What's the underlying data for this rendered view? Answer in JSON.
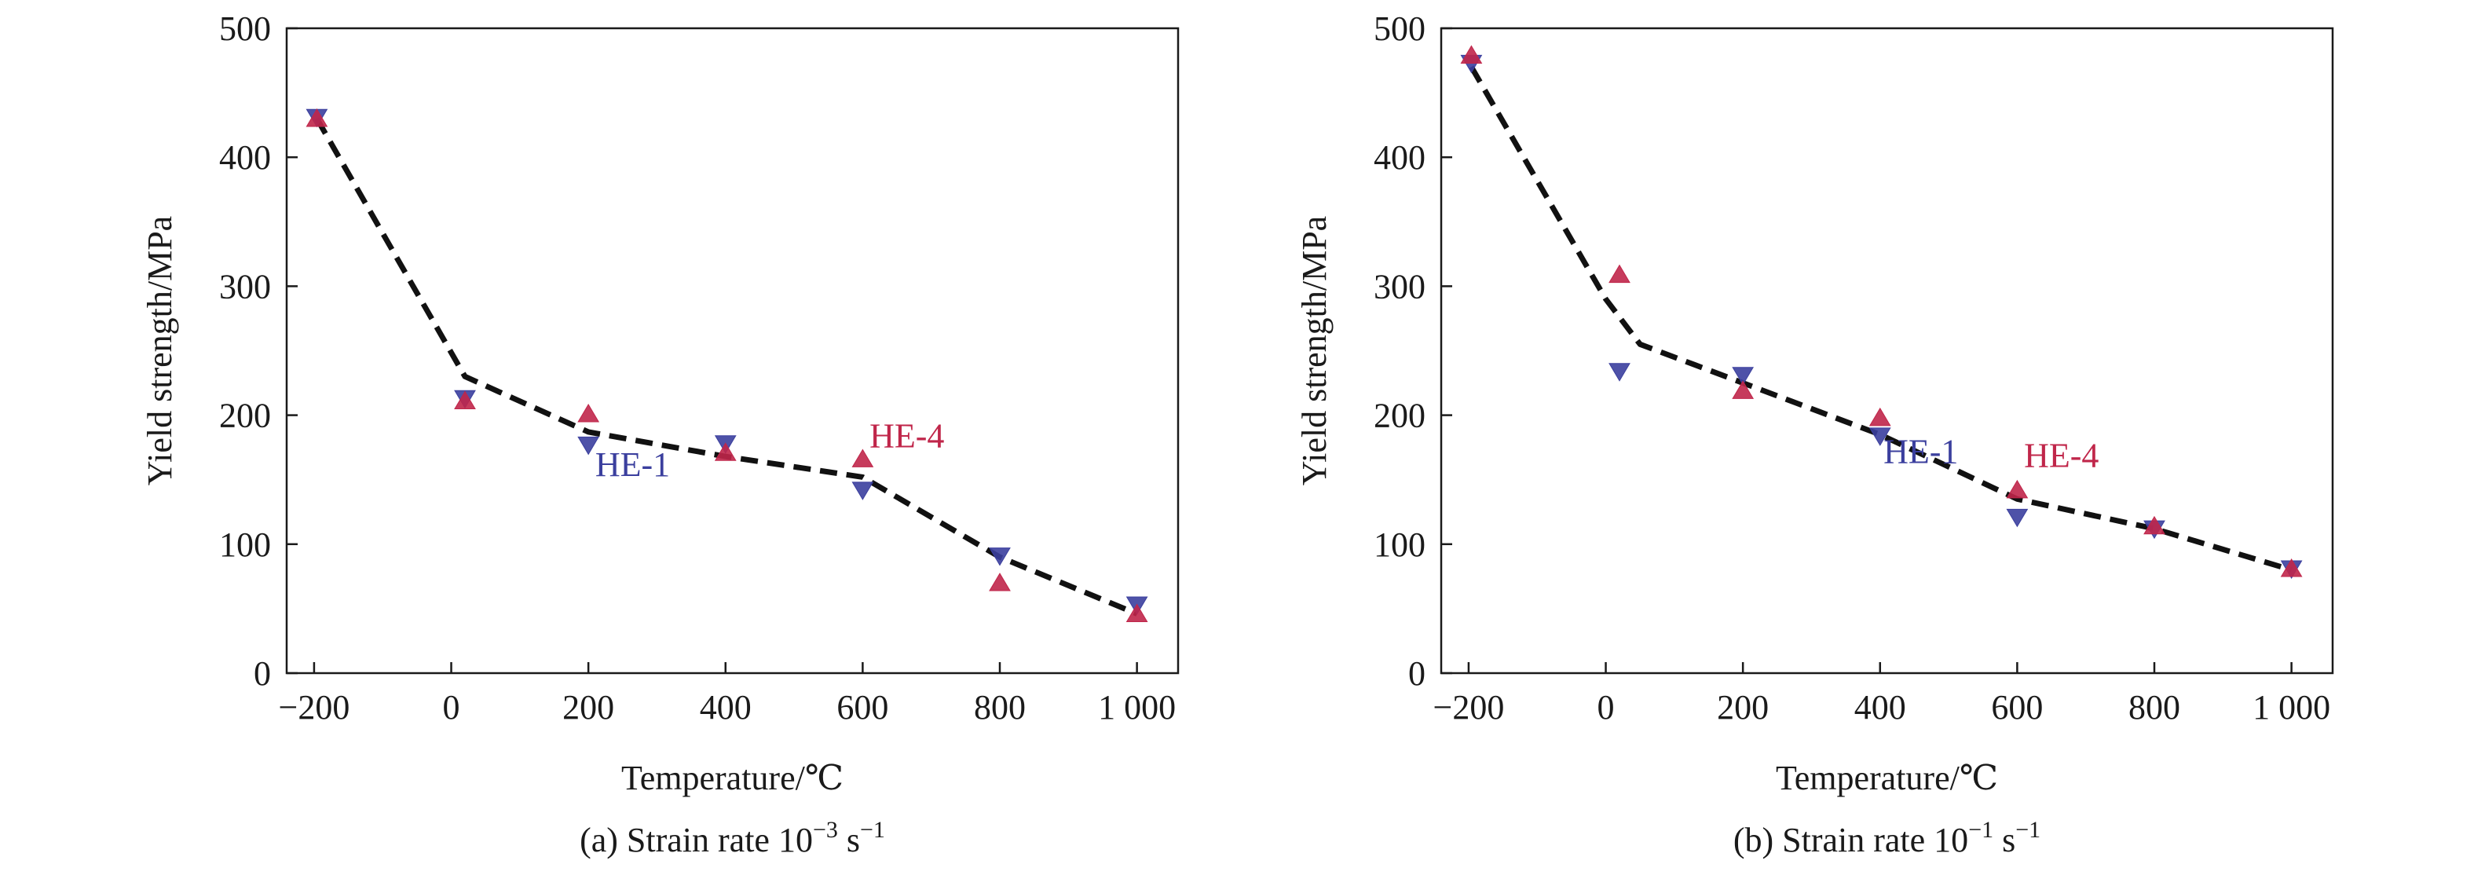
{
  "chart_data": [
    {
      "type": "scatter",
      "panel": "a",
      "caption_prefix": "(a) Strain rate 10",
      "caption_exp": "−3",
      "caption_unit": " s",
      "caption_unit_exp": "−1",
      "xlabel": "Temperature/℃",
      "ylabel": "Yield strength/MPa",
      "xlim": [
        -240,
        1060
      ],
      "ylim": [
        0,
        500
      ],
      "xticks": [
        -200,
        0,
        200,
        400,
        600,
        800,
        1000
      ],
      "xtick_labels": [
        "−200",
        "0",
        "200",
        "400",
        "600",
        "800",
        "1 000"
      ],
      "yticks": [
        0,
        100,
        200,
        300,
        400,
        500
      ],
      "ytick_labels": [
        "0",
        "100",
        "200",
        "300",
        "400",
        "500"
      ],
      "series": [
        {
          "name": "HE-1",
          "marker": "triangle-down",
          "color": "#3b3f9e",
          "x": [
            -196,
            20,
            200,
            400,
            600,
            800,
            1000
          ],
          "y": [
            431,
            213,
            177,
            178,
            142,
            91,
            53
          ]
        },
        {
          "name": "HE-4",
          "marker": "triangle-up",
          "color": "#c0264a",
          "x": [
            -196,
            20,
            200,
            400,
            600,
            800,
            1000
          ],
          "y": [
            430,
            211,
            201,
            171,
            166,
            70,
            46
          ]
        }
      ],
      "trend": {
        "color": "#111111",
        "x": [
          -196,
          20,
          200,
          400,
          600,
          800,
          1000
        ],
        "y": [
          430,
          230,
          187,
          168,
          152,
          90,
          46
        ]
      },
      "annotations": [
        {
          "text": "HE-1",
          "x": 210,
          "y": 153,
          "color": "#3b3f9e"
        },
        {
          "text": "HE-4",
          "x": 610,
          "y": 175,
          "color": "#c0264a"
        }
      ]
    },
    {
      "type": "scatter",
      "panel": "b",
      "caption_prefix": "(b) Strain rate 10",
      "caption_exp": "−1",
      "caption_unit": " s",
      "caption_unit_exp": "−1",
      "xlabel": "Temperature/℃",
      "ylabel": "Yield strength/MPa",
      "xlim": [
        -240,
        1060
      ],
      "ylim": [
        0,
        500
      ],
      "xticks": [
        -200,
        0,
        200,
        400,
        600,
        800,
        1000
      ],
      "xtick_labels": [
        "−200",
        "0",
        "200",
        "400",
        "600",
        "800",
        "1 000"
      ],
      "yticks": [
        0,
        100,
        200,
        300,
        400,
        500
      ],
      "ytick_labels": [
        "0",
        "100",
        "200",
        "300",
        "400",
        "500"
      ],
      "series": [
        {
          "name": "HE-1",
          "marker": "triangle-down",
          "color": "#3b3f9e",
          "x": [
            -196,
            20,
            200,
            400,
            600,
            800,
            1000
          ],
          "y": [
            473,
            234,
            231,
            184,
            121,
            112,
            81
          ]
        },
        {
          "name": "HE-4",
          "marker": "triangle-up",
          "color": "#c0264a",
          "x": [
            -196,
            20,
            200,
            400,
            600,
            800,
            1000
          ],
          "y": [
            479,
            309,
            219,
            198,
            142,
            114,
            81
          ]
        }
      ],
      "trend": {
        "color": "#111111",
        "x": [
          -196,
          0,
          50,
          200,
          400,
          600,
          800,
          1000
        ],
        "y": [
          470,
          290,
          255,
          225,
          185,
          135,
          112,
          80
        ]
      },
      "annotations": [
        {
          "text": "HE-1",
          "x": 405,
          "y": 163,
          "color": "#3b3f9e"
        },
        {
          "text": "HE-4",
          "x": 610,
          "y": 160,
          "color": "#c0264a"
        }
      ]
    }
  ]
}
